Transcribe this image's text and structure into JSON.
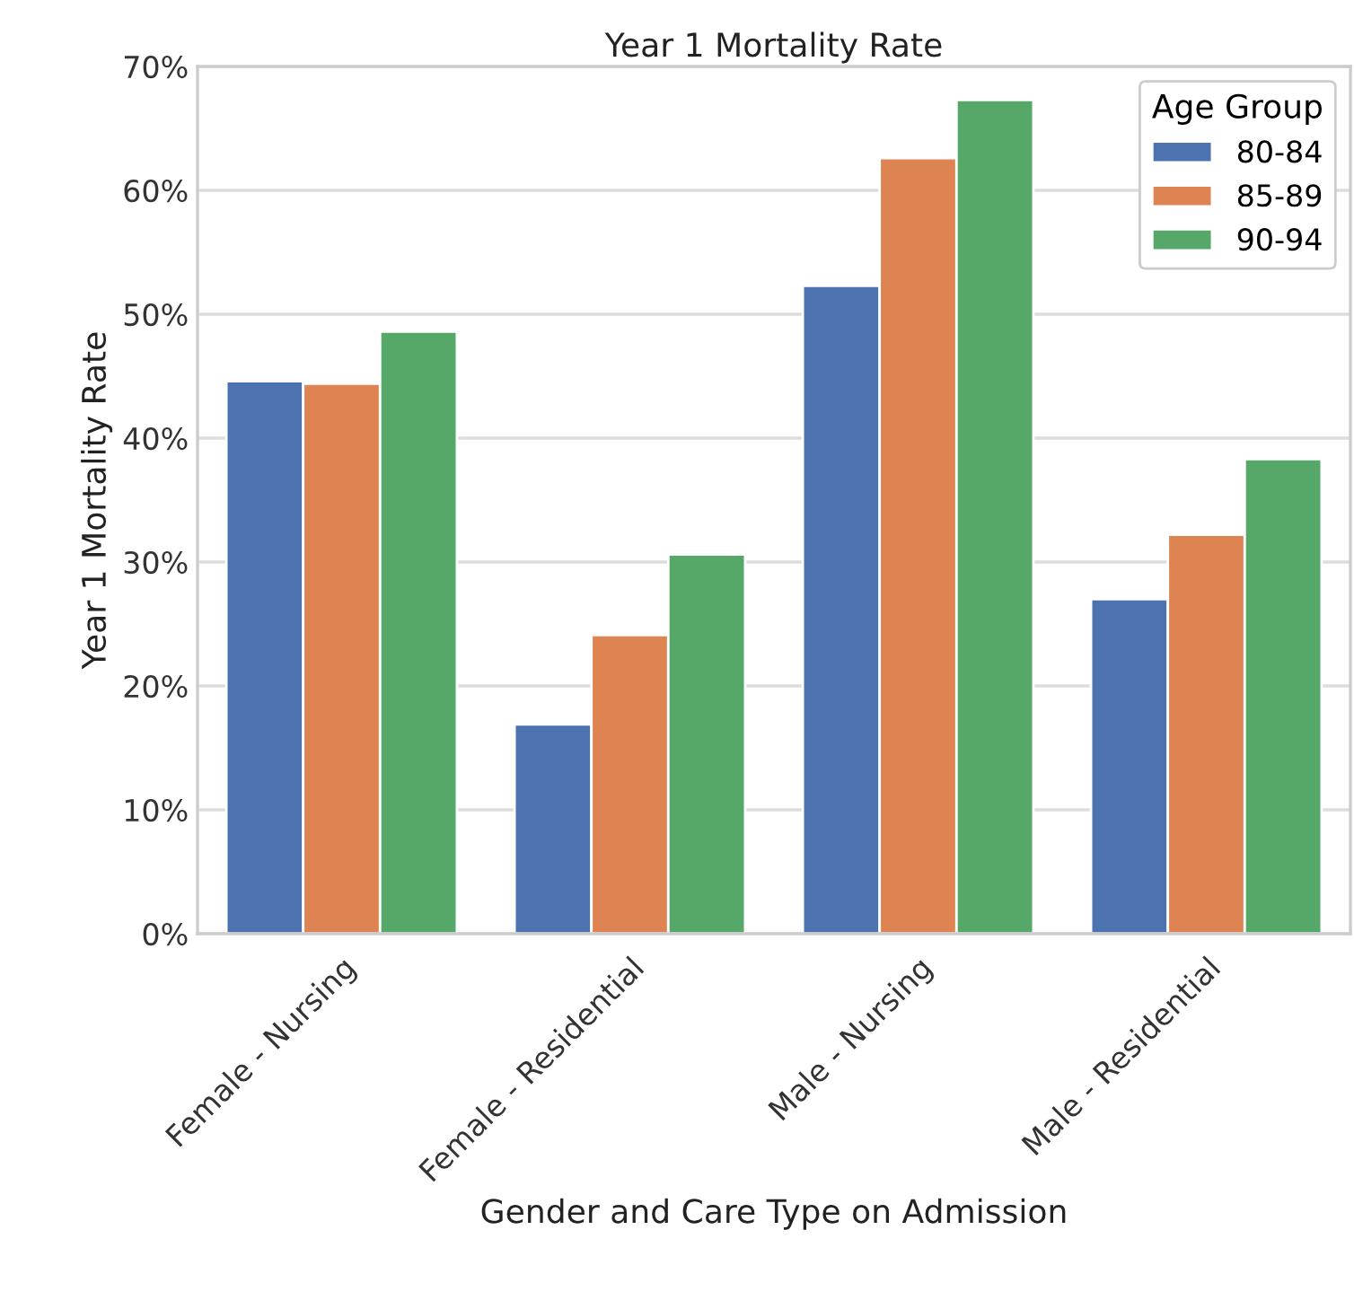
{
  "chart_data": {
    "type": "bar",
    "title": "Year 1 Mortality Rate",
    "xlabel": "Gender and Care Type on Admission",
    "ylabel": "Year 1 Mortality Rate",
    "legend_title": "Age Group",
    "legend": "top right",
    "grid": "y",
    "categories": [
      "Female - Nursing",
      "Female - Residential",
      "Male - Nursing",
      "Male - Residential"
    ],
    "series": [
      {
        "name": "80-84",
        "color": "#4c72b0",
        "values": [
          44.6,
          16.9,
          52.3,
          27.0
        ]
      },
      {
        "name": "85-89",
        "color": "#dd8452",
        "values": [
          44.4,
          24.1,
          62.6,
          32.2
        ]
      },
      {
        "name": "90-94",
        "color": "#55a868",
        "values": [
          48.6,
          30.6,
          67.3,
          38.3
        ]
      }
    ],
    "ylim": [
      0,
      70
    ],
    "yticks": [
      {
        "value": 0,
        "label": "0%"
      },
      {
        "value": 10,
        "label": "10%"
      },
      {
        "value": 20,
        "label": "20%"
      },
      {
        "value": 30,
        "label": "30%"
      },
      {
        "value": 40,
        "label": "40%"
      },
      {
        "value": 50,
        "label": "50%"
      },
      {
        "value": 60,
        "label": "60%"
      },
      {
        "value": 70,
        "label": "70%"
      }
    ]
  }
}
